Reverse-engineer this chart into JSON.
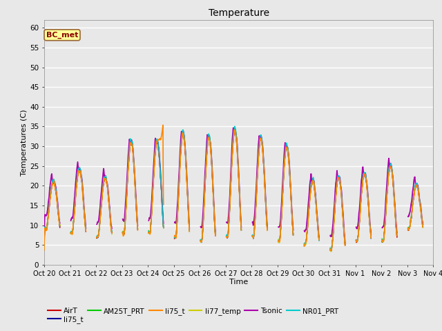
{
  "title": "Temperature",
  "xlabel": "Time",
  "ylabel": "Temperatures (C)",
  "ylim": [
    0,
    62
  ],
  "yticks": [
    0,
    5,
    10,
    15,
    20,
    25,
    30,
    35,
    40,
    45,
    50,
    55,
    60
  ],
  "fig_bg_color": "#e8e8e8",
  "plot_bg_color": "#e8e8e8",
  "annotation_text": "BC_met",
  "annotation_color": "#8B0000",
  "annotation_bg": "#ffff99",
  "series": {
    "AirT": {
      "color": "#cc0000",
      "lw": 1.0,
      "zorder": 5
    },
    "li75_t_b": {
      "color": "#000099",
      "lw": 1.0,
      "zorder": 4
    },
    "AM25T_PRT": {
      "color": "#00cc00",
      "lw": 1.0,
      "zorder": 3
    },
    "li75_t_o": {
      "color": "#ff8800",
      "lw": 1.2,
      "zorder": 9
    },
    "li77_temp": {
      "color": "#cccc00",
      "lw": 1.0,
      "zorder": 6
    },
    "Tsonic": {
      "color": "#aa00aa",
      "lw": 1.3,
      "zorder": 7
    },
    "NR01_PRT": {
      "color": "#00cccc",
      "lw": 1.0,
      "zorder": 8
    }
  },
  "legend": [
    {
      "label": "AirT",
      "color": "#cc0000"
    },
    {
      "label": "li75_t",
      "color": "#000099"
    },
    {
      "label": "AM25T_PRT",
      "color": "#00cc00"
    },
    {
      "label": "li75_t",
      "color": "#ff8800"
    },
    {
      "label": "li77_temp",
      "color": "#cccc00"
    },
    {
      "label": "Tsonic",
      "color": "#aa00aa"
    },
    {
      "label": "NR01_PRT",
      "color": "#00cccc"
    }
  ],
  "xtick_labels": [
    "Oct 20",
    "Oct 21",
    "Oct 22",
    "Oct 23",
    "Oct 24",
    "Oct 25",
    "Oct 26",
    "Oct 27",
    "Oct 28",
    "Oct 29",
    "Oct 30",
    "Oct 31",
    "Nov 1",
    "Nov 2",
    "Nov 3",
    "Nov 4"
  ],
  "n_days": 15
}
